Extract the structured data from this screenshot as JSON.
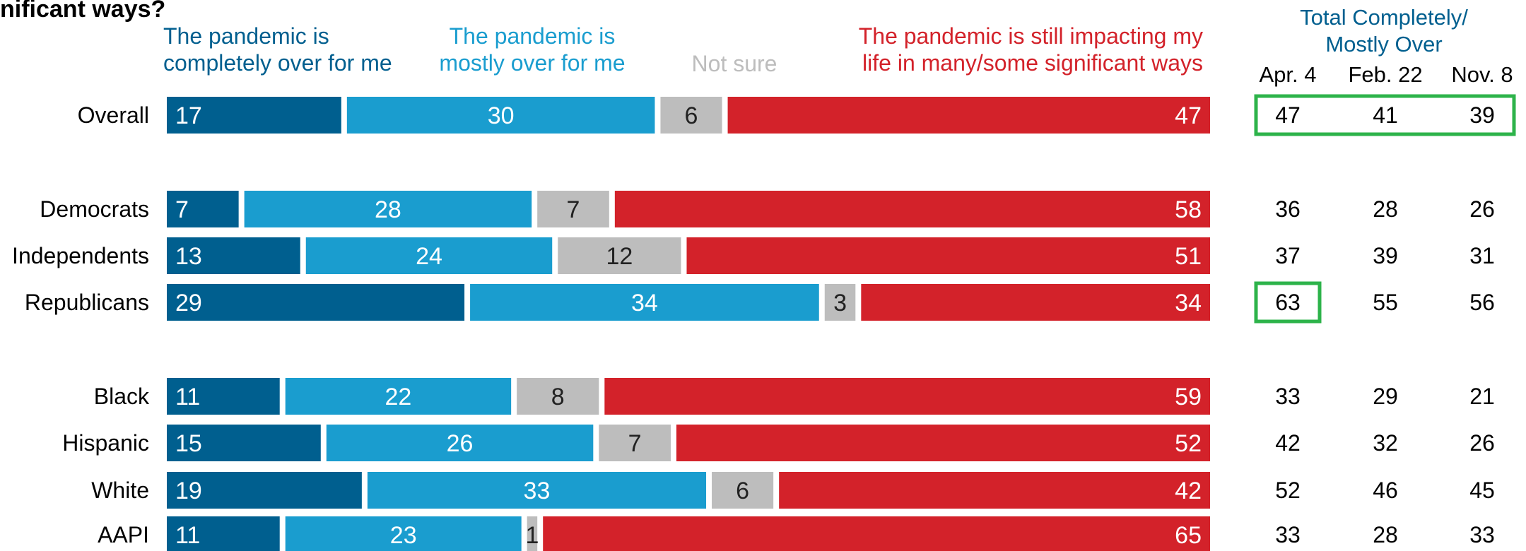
{
  "page": {
    "title": "nificant ways?"
  },
  "colors": {
    "completely_over": "#005f8f",
    "mostly_over": "#1a9dcf",
    "not_sure": "#bdbdbd",
    "still_impacting": "#d3222a",
    "table_title": "#005f8f",
    "highlight_box": "#2db34a"
  },
  "chart_data": [
    {
      "type": "bar",
      "stacked": true,
      "orientation": "horizontal",
      "categories": [
        "Overall",
        "Democrats",
        "Independents",
        "Republicans",
        "Black",
        "Hispanic",
        "White",
        "AAPI"
      ],
      "series": [
        {
          "name": "The pandemic is completely over for me",
          "values": [
            17,
            7,
            13,
            29,
            11,
            15,
            19,
            11
          ]
        },
        {
          "name": "The pandemic is mostly over for me",
          "values": [
            30,
            28,
            24,
            34,
            22,
            26,
            33,
            23
          ]
        },
        {
          "name": "Not sure",
          "values": [
            6,
            7,
            12,
            3,
            8,
            7,
            6,
            1
          ]
        },
        {
          "name": "The pandemic is still impacting my life in many/some significant ways",
          "values": [
            47,
            58,
            51,
            34,
            59,
            52,
            42,
            65
          ]
        }
      ],
      "legend": {
        "completely_over": [
          "The pandemic is",
          "completely over for me"
        ],
        "mostly_over": [
          "The pandemic is",
          "mostly over for me"
        ],
        "not_sure": [
          "Not sure"
        ],
        "still_impacting": [
          "The pandemic is still impacting my",
          "life in many/some significant ways"
        ]
      },
      "xlim": [
        0,
        100
      ]
    },
    {
      "type": "table",
      "title": [
        "Total Completely/",
        "Mostly Over"
      ],
      "columns": [
        "Apr. 4",
        "Feb. 22",
        "Nov. 8"
      ],
      "rows": [
        {
          "label": "Overall",
          "values": [
            "47",
            "41",
            "39"
          ]
        },
        {
          "label": "Democrats",
          "values": [
            "36",
            "28",
            "26"
          ]
        },
        {
          "label": "Independents",
          "values": [
            "37",
            "39",
            "31"
          ]
        },
        {
          "label": "Republicans",
          "values": [
            "63",
            "55",
            "56"
          ]
        },
        {
          "label": "Black",
          "values": [
            "33",
            "29",
            "21"
          ]
        },
        {
          "label": "Hispanic",
          "values": [
            "42",
            "32",
            "26"
          ]
        },
        {
          "label": "White",
          "values": [
            "52",
            "46",
            "45"
          ]
        },
        {
          "label": "AAPI",
          "values": [
            "33",
            "28",
            "33"
          ]
        }
      ],
      "highlights": [
        {
          "row": 0,
          "col_from": 0,
          "col_to": 2
        },
        {
          "row": 3,
          "col_from": 0,
          "col_to": 0
        }
      ]
    }
  ]
}
